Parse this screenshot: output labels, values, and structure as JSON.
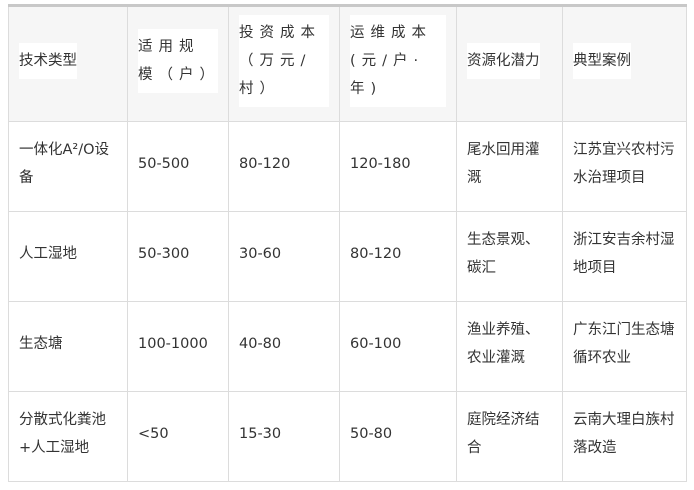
{
  "table": {
    "headers": [
      "技术类型",
      "适用规模（户）",
      "投资成本（万元/村）",
      "运维成本(元/户·年)",
      "资源化潜力",
      "典型案例"
    ],
    "rows": [
      [
        "一体化A²/O设备",
        "50-500",
        "80-120",
        "120-180",
        "尾水回用灌溉",
        "江苏宜兴农村污水治理项目"
      ],
      [
        "人工湿地",
        "50-300",
        "30-60",
        "80-120",
        "生态景观、碳汇",
        "浙江安吉余村湿地项目"
      ],
      [
        "生态塘",
        "100-1000",
        "40-80",
        "60-100",
        "渔业养殖、农业灌溉",
        "广东江门生态塘循环农业"
      ],
      [
        "分散式化粪池+人工湿地",
        "<50",
        "15-30",
        "50-80",
        "庭院经济结合",
        "云南大理白族村落改造"
      ]
    ]
  }
}
